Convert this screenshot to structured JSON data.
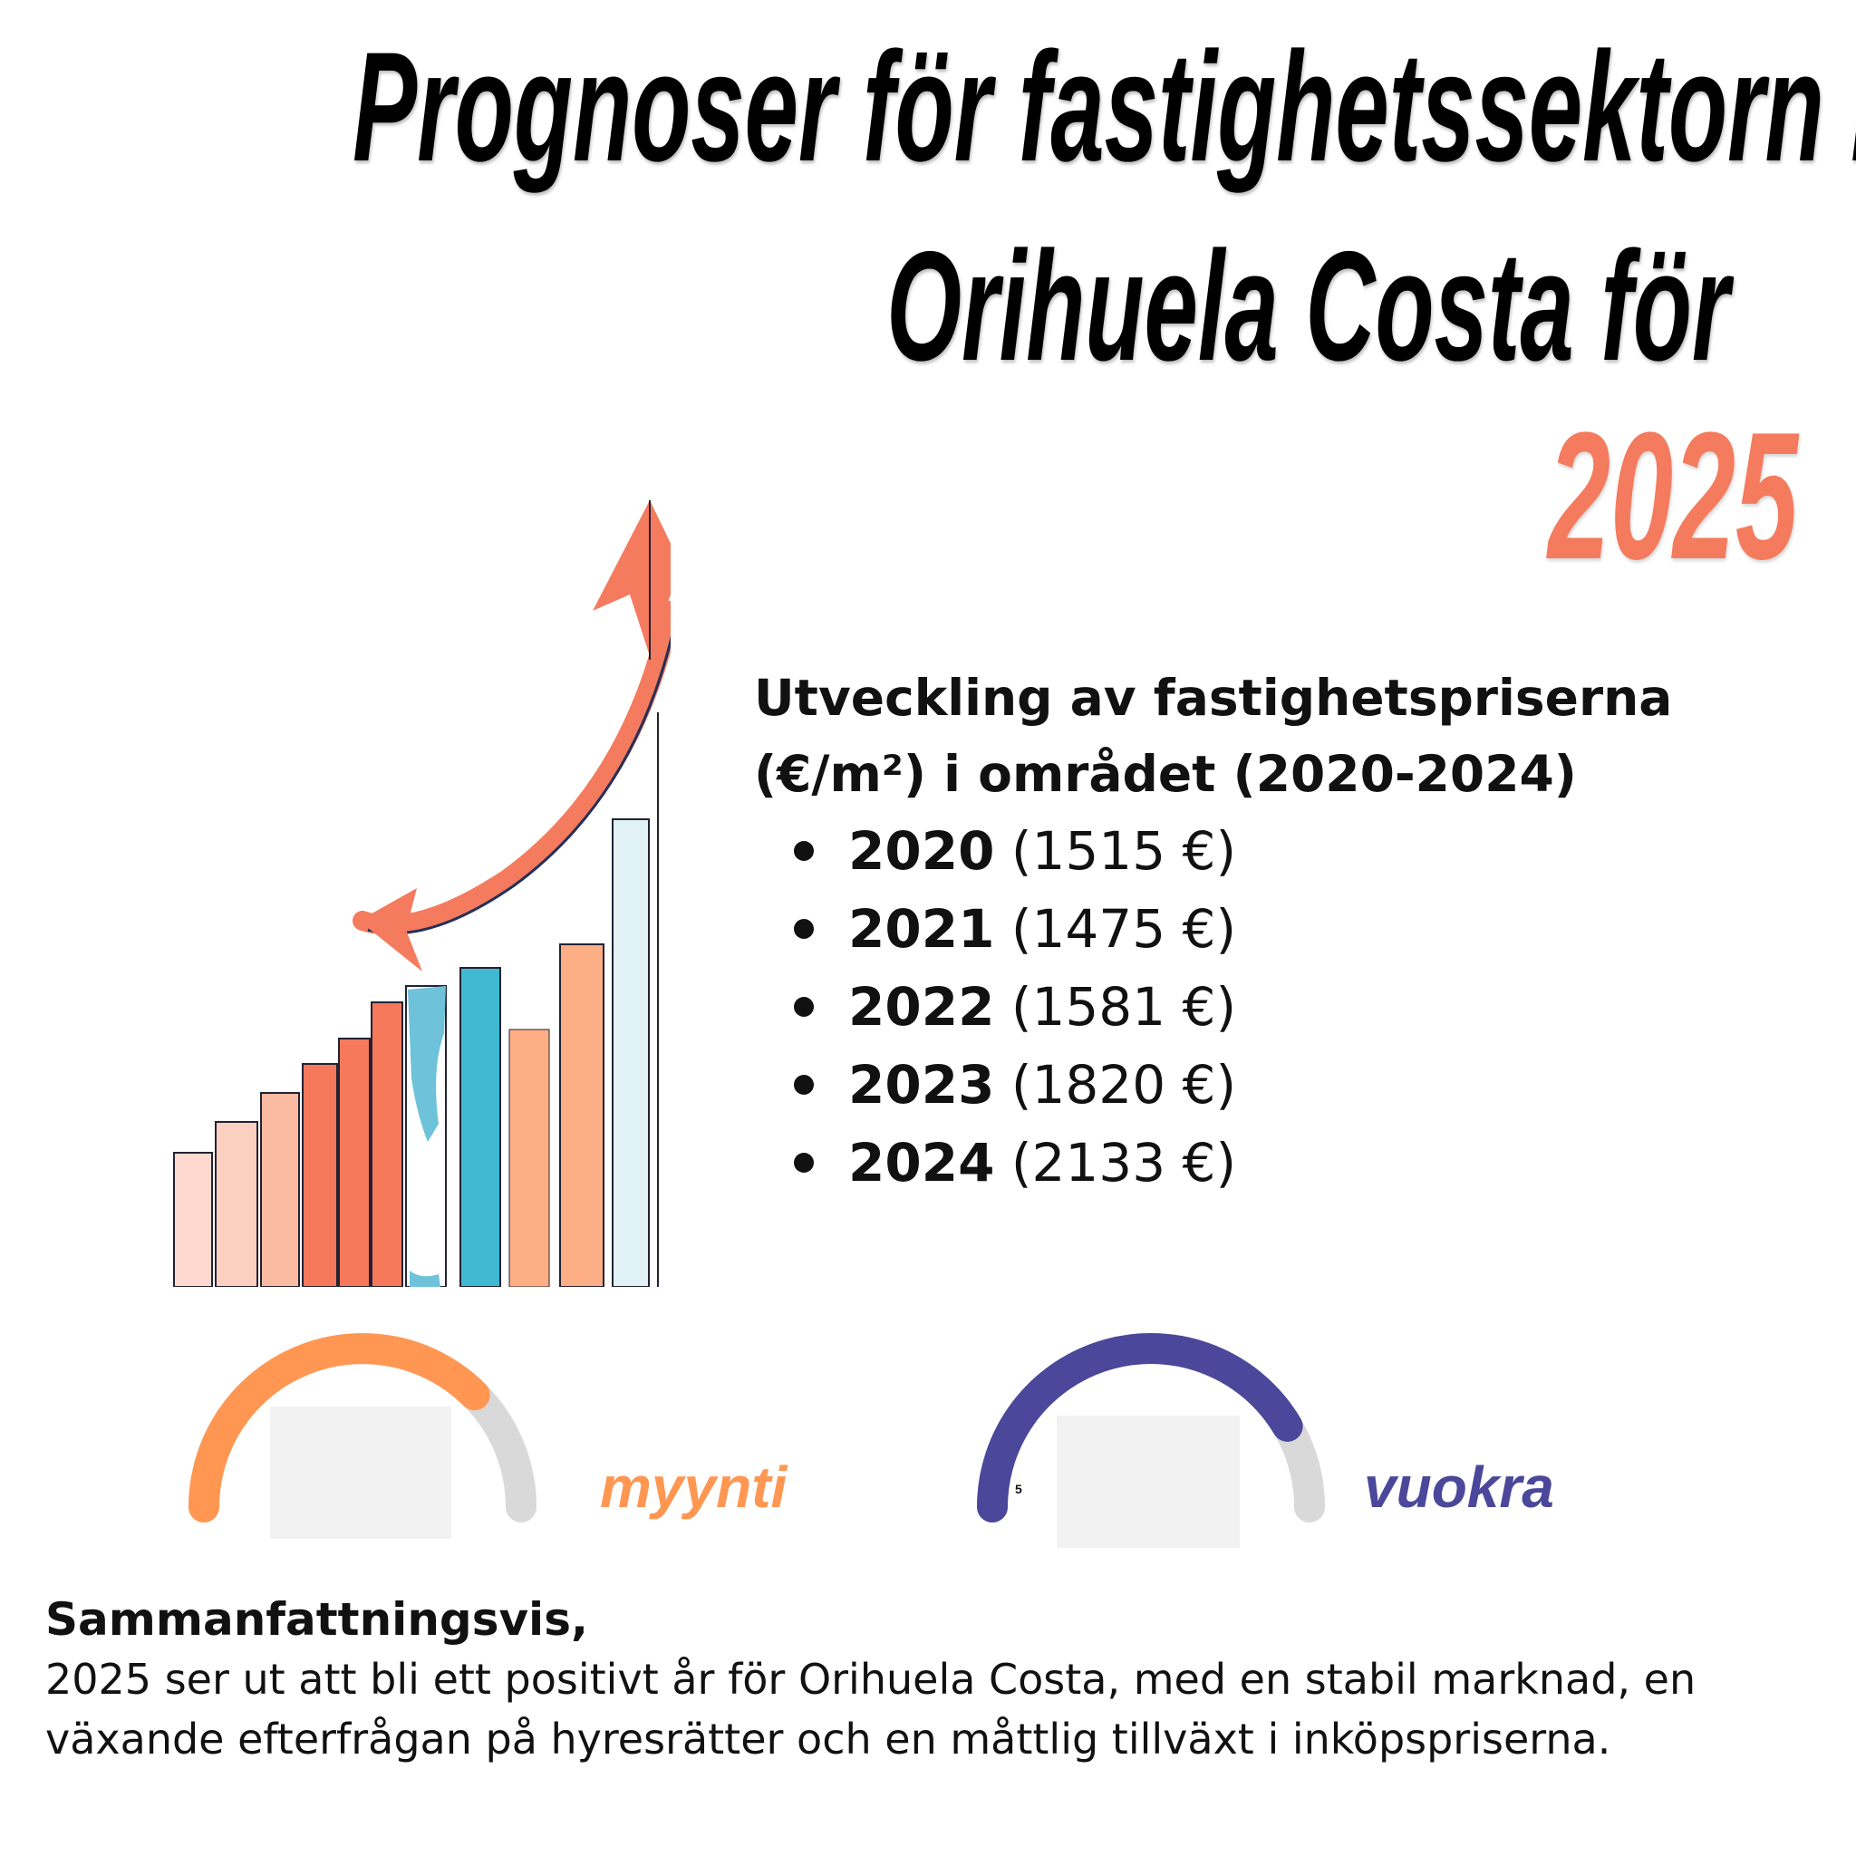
{
  "title": {
    "line1": "Prognoser för fastighetssektorn i",
    "line2": "Orihuela Costa för",
    "year": "2025"
  },
  "price_section": {
    "heading": "Utveckling av fastighetspriserna (€/m²) i området (2020-2024)",
    "items": [
      {
        "year": "2020",
        "value": "(1515 €)"
      },
      {
        "year": "2021",
        "value": "(1475 €)"
      },
      {
        "year": "2022",
        "value": "(1581 €)"
      },
      {
        "year": "2023",
        "value": "(1820 €)"
      },
      {
        "year": "2024",
        "value": "(2133 €)"
      }
    ]
  },
  "gauges": {
    "sale": {
      "label": "myynti",
      "color": "#ff9752",
      "fill_fraction": 0.75
    },
    "rent": {
      "label": "vuokra",
      "color": "#4b479a",
      "fill_fraction": 0.83,
      "tick": "5"
    }
  },
  "summary": {
    "heading": "Sammanfattningsvis,",
    "body": "2025 ser ut att bli ett positivt år för Orihuela Costa, med en stabil marknad, en växande efterfrågan på hyresrätter och en måttlig tillväxt i inköpspriserna."
  },
  "colors": {
    "accent": "#f47b5e",
    "sale": "#ff9752",
    "rent": "#4b479a",
    "text": "#111111"
  }
}
